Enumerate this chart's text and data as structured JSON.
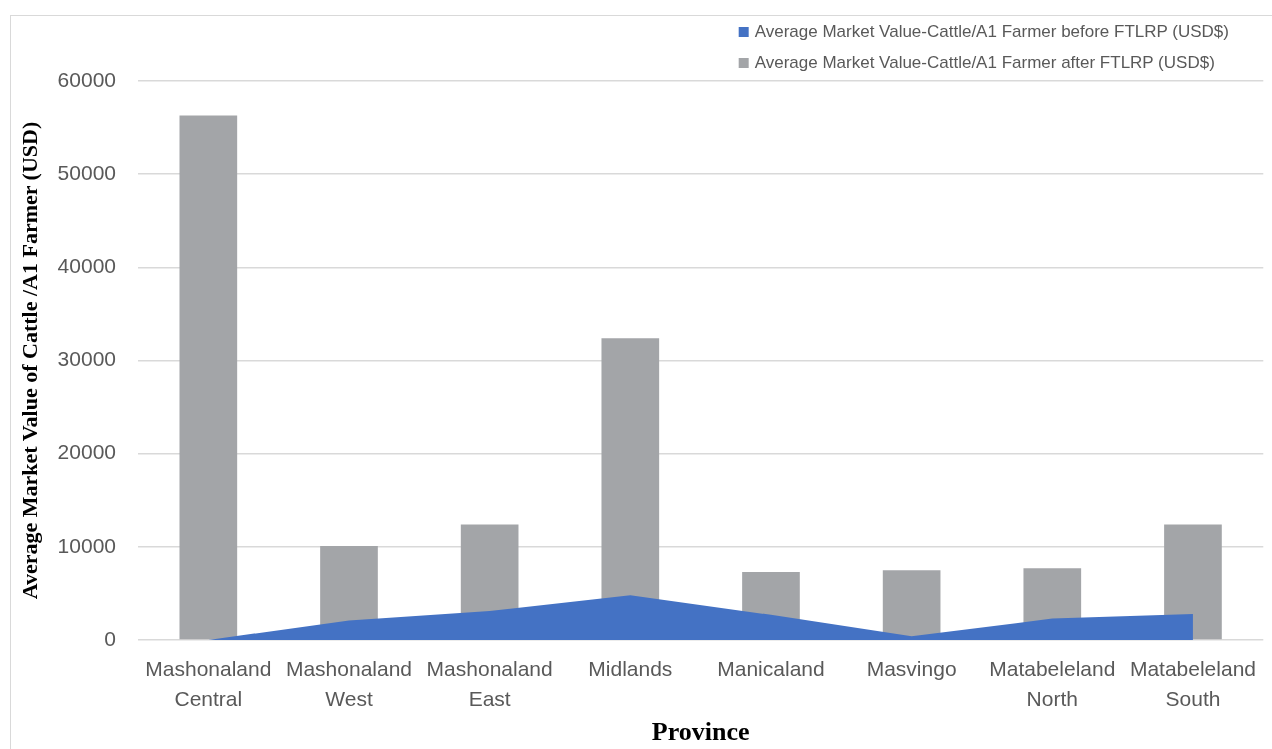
{
  "chart_data": {
    "type": "bar",
    "xlabel": "Province",
    "ylabel": "Average Market Value of Cattle /A1 Farmer (USD)",
    "categories": [
      "Mashonaland Central",
      "Mashonaland West",
      "Mashonaland East",
      "Midlands",
      "Manicaland",
      "Masvingo",
      "Matabeleland North",
      "Matabeleland South"
    ],
    "series": [
      {
        "name": "Average Market Value-Cattle/A1 Farmer before FTLRP (USD$)",
        "type": "area",
        "color": "#4472c4",
        "values": [
          0,
          2100,
          3100,
          4800,
          2700,
          400,
          2300,
          2800
        ]
      },
      {
        "name": "Average Market Value-Cattle/A1 Farmer after FTLRP (USD$)",
        "color": "#a3a5a8",
        "values": [
          56300,
          10100,
          12400,
          32400,
          7300,
          7500,
          7700,
          12400
        ]
      }
    ],
    "ylim": [
      0,
      60000
    ],
    "yticks": [
      0,
      10000,
      20000,
      30000,
      40000,
      50000,
      60000
    ],
    "grid": "y",
    "legend": "top right"
  }
}
